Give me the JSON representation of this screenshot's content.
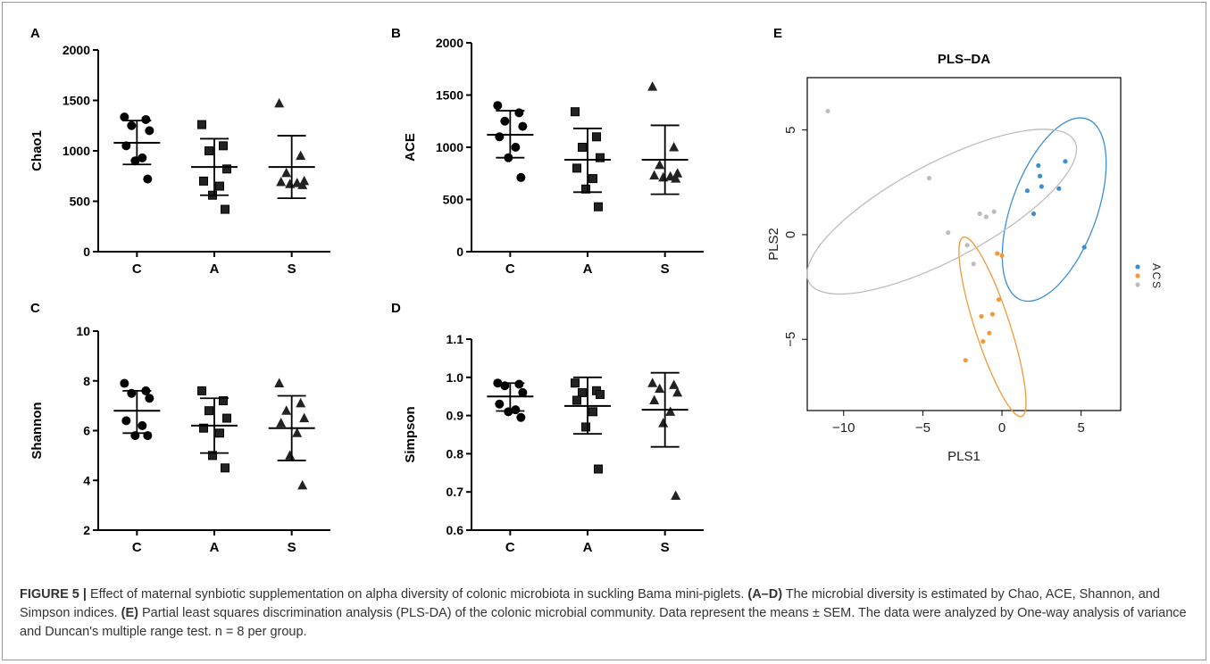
{
  "caption": {
    "figure_label": "FIGURE 5 |",
    "text": "Effect of maternal synbiotic supplementation on alpha diversity of colonic microbiota in suckling Bama mini-piglets.",
    "ref1": "(A–D)",
    "text1": "The microbial diversity is estimated by Chao, ACE, Shannon, and Simpson indices.",
    "ref2": "(E)",
    "text2": "Partial least squares discrimination analysis (PLS-DA) of the colonic microbial community. Data represent the means ± SEM. The data were analyzed by One-way analysis of variance and Duncan's multiple range test.",
    "n_text": "n = 8 per group."
  },
  "chart_data": [
    {
      "panel": "A",
      "type": "scatter",
      "ylabel": "Chao1",
      "categories": [
        "C",
        "A",
        "S"
      ],
      "ylim": [
        0,
        2000
      ],
      "yticks": [
        0,
        500,
        1000,
        1500,
        2000
      ],
      "series": [
        {
          "group": "C",
          "marker": "circle",
          "mean": 1080,
          "upper": 1300,
          "lower": 865,
          "points": [
            1335,
            1310,
            1250,
            1200,
            1050,
            930,
            900,
            720
          ]
        },
        {
          "group": "A",
          "marker": "square",
          "mean": 840,
          "upper": 1120,
          "lower": 560,
          "points": [
            1260,
            1050,
            1000,
            820,
            700,
            650,
            560,
            420
          ]
        },
        {
          "group": "S",
          "marker": "triangle",
          "mean": 840,
          "upper": 1150,
          "lower": 530,
          "points": [
            1470,
            950,
            780,
            700,
            690,
            680,
            670,
            660
          ]
        }
      ]
    },
    {
      "panel": "B",
      "type": "scatter",
      "ylabel": "ACE",
      "categories": [
        "C",
        "A",
        "S"
      ],
      "ylim": [
        0,
        2000
      ],
      "yticks": [
        0,
        500,
        1000,
        1500,
        2000
      ],
      "series": [
        {
          "group": "C",
          "marker": "circle",
          "mean": 1120,
          "upper": 1350,
          "lower": 900,
          "points": [
            1400,
            1330,
            1250,
            1200,
            1100,
            1000,
            900,
            710
          ]
        },
        {
          "group": "A",
          "marker": "square",
          "mean": 880,
          "upper": 1180,
          "lower": 570,
          "points": [
            1340,
            1100,
            1000,
            900,
            800,
            700,
            600,
            430
          ]
        },
        {
          "group": "S",
          "marker": "triangle",
          "mean": 880,
          "upper": 1210,
          "lower": 550,
          "points": [
            1580,
            1000,
            830,
            750,
            730,
            720,
            710,
            700
          ]
        }
      ]
    },
    {
      "panel": "C",
      "type": "scatter",
      "ylabel": "Shannon",
      "categories": [
        "C",
        "A",
        "S"
      ],
      "ylim": [
        2,
        10
      ],
      "yticks": [
        2,
        4,
        6,
        8,
        10
      ],
      "series": [
        {
          "group": "C",
          "marker": "circle",
          "mean": 6.8,
          "upper": 7.6,
          "lower": 5.9,
          "points": [
            7.9,
            7.6,
            7.5,
            7.3,
            6.4,
            6.2,
            5.8,
            5.8
          ]
        },
        {
          "group": "A",
          "marker": "square",
          "mean": 6.2,
          "upper": 7.3,
          "lower": 5.1,
          "points": [
            7.6,
            7.2,
            6.8,
            6.5,
            6.1,
            5.9,
            5.0,
            4.5
          ]
        },
        {
          "group": "S",
          "marker": "triangle",
          "mean": 6.1,
          "upper": 7.4,
          "lower": 4.8,
          "points": [
            7.9,
            7.1,
            6.8,
            6.5,
            6.3,
            5.9,
            5.0,
            3.8
          ]
        }
      ]
    },
    {
      "panel": "D",
      "type": "scatter",
      "ylabel": "Simpson",
      "categories": [
        "C",
        "A",
        "S"
      ],
      "ylim": [
        0.6,
        1.1
      ],
      "yticks": [
        0.6,
        0.7,
        0.8,
        0.9,
        1.0,
        1.1
      ],
      "series": [
        {
          "group": "C",
          "marker": "circle",
          "mean": 0.95,
          "upper": 0.985,
          "lower": 0.912,
          "points": [
            0.985,
            0.982,
            0.978,
            0.96,
            0.93,
            0.915,
            0.91,
            0.895
          ]
        },
        {
          "group": "A",
          "marker": "square",
          "mean": 0.925,
          "upper": 1.0,
          "lower": 0.852,
          "points": [
            0.985,
            0.965,
            0.96,
            0.955,
            0.94,
            0.91,
            0.87,
            0.76
          ]
        },
        {
          "group": "S",
          "marker": "triangle",
          "mean": 0.915,
          "upper": 1.012,
          "lower": 0.818,
          "points": [
            0.985,
            0.98,
            0.97,
            0.96,
            0.94,
            0.91,
            0.88,
            0.69
          ]
        }
      ]
    },
    {
      "panel": "E",
      "type": "scatter",
      "title": "PLS–DA",
      "xlabel": "PLS1",
      "ylabel": "PLS2",
      "xlim": [
        -12.3,
        7.5
      ],
      "ylim": [
        -8.4,
        7.5
      ],
      "xticks": [
        -10,
        -5,
        0,
        5
      ],
      "yticks": [
        -5,
        0,
        5
      ],
      "legend": {
        "position": "right",
        "entries": [
          "A",
          "C",
          "S"
        ]
      },
      "colors": {
        "A": "#3D8FD1",
        "C": "#F29A3B",
        "S": "#BDBDBD"
      },
      "series": [
        {
          "name": "A",
          "points": [
            [
              2.0,
              1.0
            ],
            [
              1.6,
              2.1
            ],
            [
              2.3,
              3.3
            ],
            [
              2.4,
              2.8
            ],
            [
              2.5,
              2.3
            ],
            [
              3.6,
              2.2
            ],
            [
              4.0,
              3.5
            ],
            [
              5.2,
              -0.6
            ]
          ],
          "ellipse": {
            "cx": 3.3,
            "cy": 1.2,
            "rx": 2.7,
            "ry": 4.6,
            "angle": 20
          }
        },
        {
          "name": "C",
          "points": [
            [
              -0.3,
              -0.9
            ],
            [
              0.0,
              -1.0
            ],
            [
              -0.2,
              -3.1
            ],
            [
              -0.6,
              -3.8
            ],
            [
              -1.3,
              -3.9
            ],
            [
              -0.8,
              -4.7
            ],
            [
              -1.2,
              -5.1
            ],
            [
              -2.3,
              -6.0
            ]
          ],
          "ellipse": {
            "cx": -0.6,
            "cy": -4.4,
            "rx": 1.1,
            "ry": 4.5,
            "angle": -18
          }
        },
        {
          "name": "S",
          "points": [
            [
              -11.0,
              5.9
            ],
            [
              -4.6,
              2.7
            ],
            [
              -1.4,
              1.0
            ],
            [
              -1.0,
              0.85
            ],
            [
              -0.5,
              1.1
            ],
            [
              -3.4,
              0.1
            ],
            [
              -2.2,
              -0.5
            ],
            [
              -1.8,
              -1.4
            ]
          ],
          "ellipse": {
            "cx": -3.8,
            "cy": 1.1,
            "rx": 9.5,
            "ry": 2.3,
            "angle": -28
          }
        }
      ]
    }
  ]
}
